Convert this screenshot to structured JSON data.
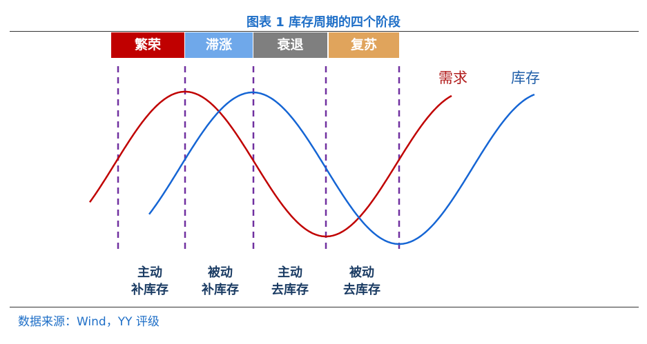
{
  "title": "图表 1 库存周期的四个阶段",
  "phases": [
    {
      "label": "繁荣",
      "color": "#c00000"
    },
    {
      "label": "滞涨",
      "color": "#6fa8ea"
    },
    {
      "label": "衰退",
      "color": "#7f7f7f"
    },
    {
      "label": "复苏",
      "color": "#e0a45c"
    }
  ],
  "legend": {
    "demand": {
      "label": "需求",
      "color": "#b11a1a"
    },
    "inventory": {
      "label": "库存",
      "color": "#1f5ea8"
    }
  },
  "curves": {
    "demand_color": "#c00000",
    "inventory_color": "#1565d4",
    "divider_color": "#7030a0"
  },
  "strategies": [
    {
      "line1": "主动",
      "line2": "补库存"
    },
    {
      "line1": "被动",
      "line2": "补库存"
    },
    {
      "line1": "主动",
      "line2": "去库存"
    },
    {
      "line1": "被动",
      "line2": "去库存"
    }
  ],
  "source": "数据来源：Wind，YY 评级"
}
